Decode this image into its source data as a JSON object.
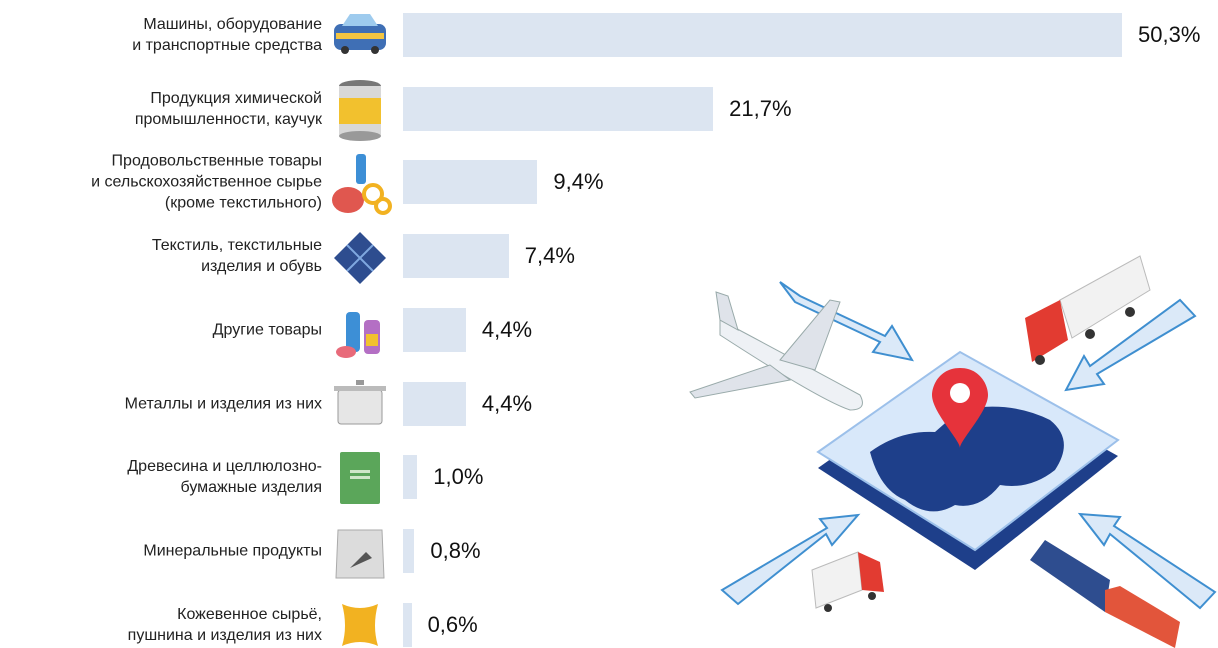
{
  "chart_data": {
    "type": "bar",
    "orientation": "horizontal",
    "color": "#dce5f1",
    "categories": [
      "Машины, оборудование\nи транспортные средства",
      "Продукция химической\nпромышленности, каучук",
      "Продовольственные товары\nи сельскохозяйственное сырье\n(кроме текстильного)",
      "Текстиль, текстильные\nизделия и обувь",
      "Другие товары",
      "Металлы и изделия из них",
      "Древесина и целлюлозно-\nбумажные изделия",
      "Минеральные продукты",
      "Кожевенное сырьё,\nпушнина и изделия из них"
    ],
    "values": [
      50.3,
      21.7,
      9.4,
      7.4,
      4.4,
      4.4,
      1.0,
      0.8,
      0.6
    ],
    "value_labels": [
      "50,3%",
      "21,7%",
      "9,4%",
      "7,4%",
      "4,4%",
      "4,4%",
      "1,0%",
      "0,8%",
      "0,6%"
    ]
  }
}
